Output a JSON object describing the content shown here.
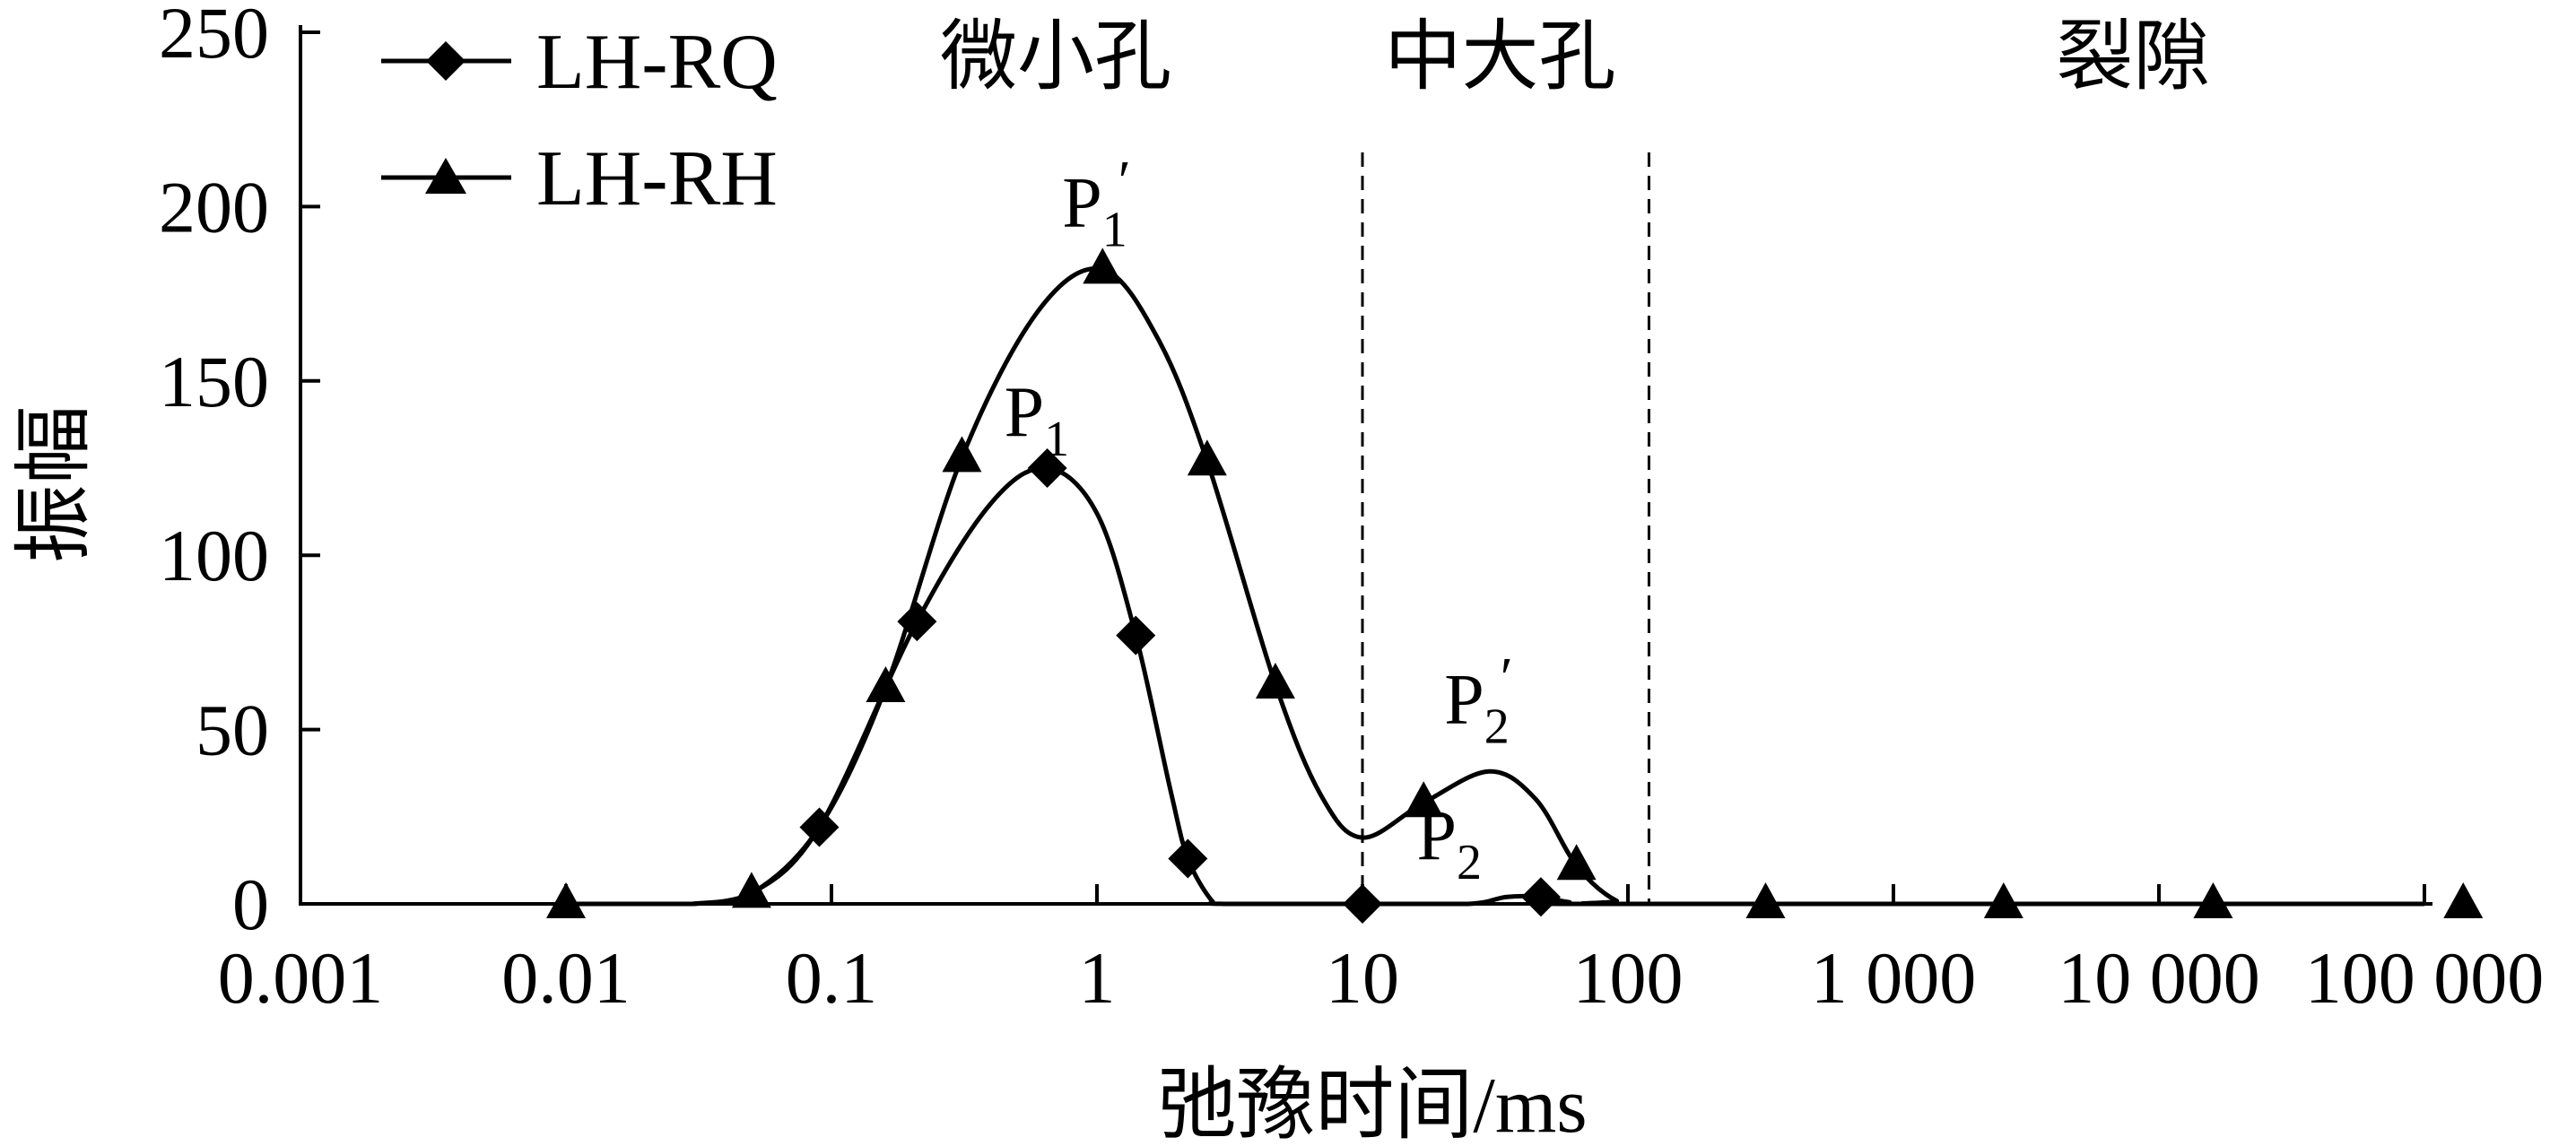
{
  "chart_data": {
    "type": "line",
    "xlabel": "弛豫时间/ms",
    "ylabel": "振幅",
    "x_scale": "log",
    "xlim": [
      0.001,
      100000
    ],
    "ylim": [
      0,
      250
    ],
    "x_ticks": [
      0.001,
      0.01,
      0.1,
      1,
      10,
      100,
      1000,
      10000,
      100000
    ],
    "x_tick_labels": [
      "0.001",
      "0.01",
      "0.1",
      "1",
      "10",
      "100",
      "1 000",
      "10 000",
      "100 000"
    ],
    "y_ticks": [
      0,
      50,
      100,
      150,
      200,
      250
    ],
    "y_tick_labels": [
      "0",
      "50",
      "100",
      "150",
      "200",
      "250"
    ],
    "legend_position": "top-left",
    "series": [
      {
        "name": "LH-RQ",
        "marker": "diamond",
        "marker_points": [
          [
            0.09,
            22
          ],
          [
            0.21,
            81
          ],
          [
            0.65,
            125
          ],
          [
            1.4,
            77
          ],
          [
            2.2,
            13
          ],
          [
            10,
            0
          ],
          [
            47,
            2
          ]
        ],
        "curve": [
          [
            0.03,
            0
          ],
          [
            0.05,
            3
          ],
          [
            0.09,
            22
          ],
          [
            0.21,
            81
          ],
          [
            0.4,
            115
          ],
          [
            0.65,
            125
          ],
          [
            1.0,
            112
          ],
          [
            1.4,
            77
          ],
          [
            1.9,
            32
          ],
          [
            2.2,
            13
          ],
          [
            2.7,
            1
          ],
          [
            3.0,
            0
          ],
          [
            10,
            0
          ],
          [
            25,
            0
          ],
          [
            35,
            2
          ],
          [
            47,
            2
          ],
          [
            60,
            0.5
          ],
          [
            80,
            0
          ],
          [
            100000,
            0
          ]
        ]
      },
      {
        "name": "LH-RH",
        "marker": "triangle",
        "marker_points": [
          [
            0.01,
            0
          ],
          [
            0.05,
            3
          ],
          [
            0.16,
            62
          ],
          [
            0.31,
            128
          ],
          [
            1.05,
            182
          ],
          [
            2.6,
            127
          ],
          [
            4.7,
            63
          ],
          [
            17,
            29
          ],
          [
            64,
            11
          ],
          [
            330,
            0
          ],
          [
            2600,
            0
          ],
          [
            16000,
            0
          ],
          [
            140000,
            0
          ]
        ],
        "curve": [
          [
            0.01,
            0
          ],
          [
            0.03,
            0
          ],
          [
            0.05,
            3
          ],
          [
            0.09,
            22
          ],
          [
            0.16,
            62
          ],
          [
            0.31,
            128
          ],
          [
            0.6,
            170
          ],
          [
            1.05,
            182
          ],
          [
            1.7,
            162
          ],
          [
            2.6,
            127
          ],
          [
            4.7,
            63
          ],
          [
            7,
            31
          ],
          [
            10,
            19
          ],
          [
            17,
            29
          ],
          [
            30,
            38
          ],
          [
            45,
            30
          ],
          [
            64,
            11
          ],
          [
            90,
            1
          ],
          [
            120,
            0
          ],
          [
            100000,
            0
          ]
        ]
      }
    ],
    "regions": [
      {
        "label": "微小孔",
        "x_center": 0.7
      },
      {
        "label": "中大孔",
        "x_center": 33
      },
      {
        "label": "裂隙",
        "x_center": 8000
      }
    ],
    "region_boundaries": [
      10,
      120
    ],
    "peak_annotations": [
      {
        "label": "P",
        "sub": "1",
        "prime": "′",
        "x": 1.05,
        "y": 182
      },
      {
        "label": "P",
        "sub": "1",
        "prime": "",
        "x": 0.65,
        "y": 125
      },
      {
        "label": "P",
        "sub": "2",
        "prime": "′",
        "x": 30,
        "y": 38
      },
      {
        "label": "P",
        "sub": "2",
        "prime": "",
        "x": 24,
        "y": 2
      }
    ]
  }
}
